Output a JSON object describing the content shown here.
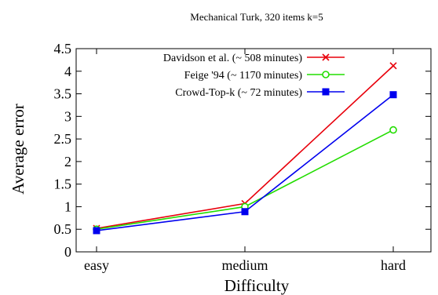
{
  "chart_data": {
    "type": "line",
    "title": "Mechanical Turk, 320 items k=5",
    "xlabel": "Difficulty",
    "ylabel": "Average error",
    "categories": [
      "easy",
      "medium",
      "hard"
    ],
    "ylim": [
      0,
      4.5
    ],
    "yticks": [
      0,
      0.5,
      1,
      1.5,
      2,
      2.5,
      3,
      3.5,
      4,
      4.5
    ],
    "ytick_labels": [
      "0",
      "0.5",
      "1",
      "1.5",
      "2",
      "2.5",
      "3",
      "3.5",
      "4",
      "4.5"
    ],
    "grid": false,
    "legend_position": "top-right",
    "series": [
      {
        "name": "Davidson et al. (~ 508 minutes)",
        "values": [
          0.52,
          1.07,
          4.12
        ],
        "color": "#e8000b",
        "marker": "x"
      },
      {
        "name": "Feige '94 (~ 1170 minutes)",
        "values": [
          0.5,
          1.0,
          2.7
        ],
        "color": "#22dd00",
        "marker": "circle"
      },
      {
        "name": "Crowd-Top-k (~ 72 minutes)",
        "values": [
          0.47,
          0.89,
          3.48
        ],
        "color": "#0000ee",
        "marker": "square"
      }
    ]
  }
}
